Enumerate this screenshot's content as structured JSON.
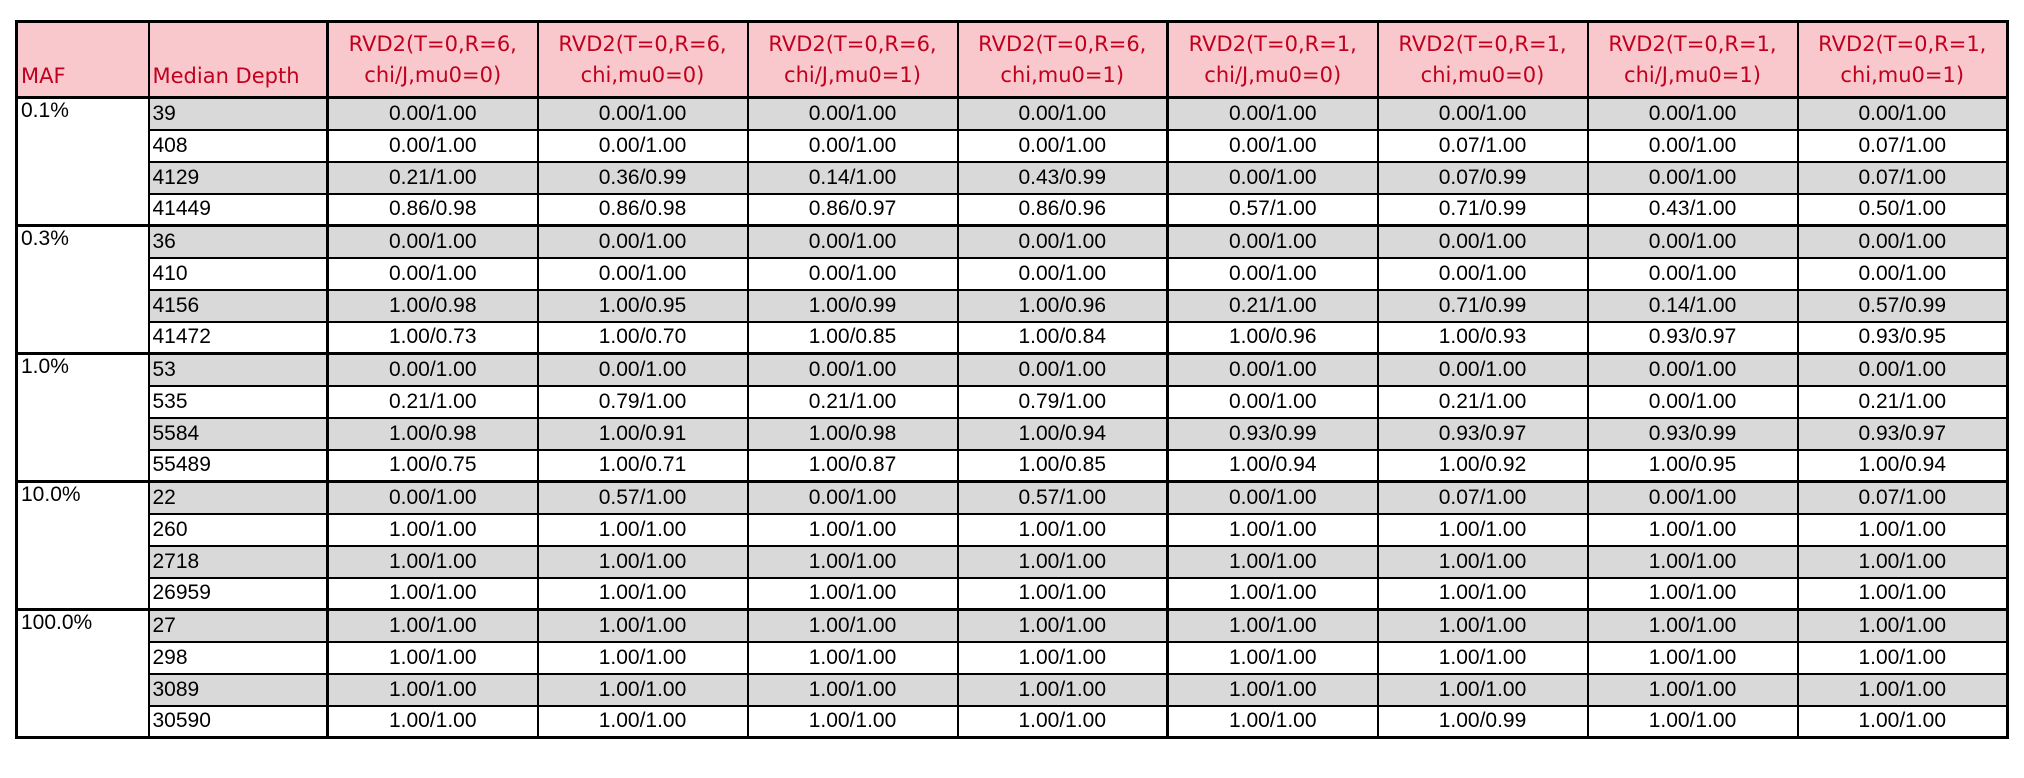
{
  "chart_data": {
    "type": "table",
    "columns": [
      "MAF",
      "Median Depth",
      "RVD2(T=0,R=6,\nchi/J,mu0=0)",
      "RVD2(T=0,R=6,\nchi,mu0=0)",
      "RVD2(T=0,R=6,\nchi/J,mu0=1)",
      "RVD2(T=0,R=6,\nchi,mu0=1)",
      "RVD2(T=0,R=1,\nchi/J,mu0=0)",
      "RVD2(T=0,R=1,\nchi,mu0=0)",
      "RVD2(T=0,R=1,\nchi/J,mu0=1)",
      "RVD2(T=0,R=1,\nchi,mu0=1)"
    ],
    "groups": [
      {
        "maf": "0.1%",
        "rows": [
          {
            "depth": "39",
            "values": [
              "0.00/1.00",
              "0.00/1.00",
              "0.00/1.00",
              "0.00/1.00",
              "0.00/1.00",
              "0.00/1.00",
              "0.00/1.00",
              "0.00/1.00"
            ]
          },
          {
            "depth": "408",
            "values": [
              "0.00/1.00",
              "0.00/1.00",
              "0.00/1.00",
              "0.00/1.00",
              "0.00/1.00",
              "0.07/1.00",
              "0.00/1.00",
              "0.07/1.00"
            ]
          },
          {
            "depth": "4129",
            "values": [
              "0.21/1.00",
              "0.36/0.99",
              "0.14/1.00",
              "0.43/0.99",
              "0.00/1.00",
              "0.07/0.99",
              "0.00/1.00",
              "0.07/1.00"
            ]
          },
          {
            "depth": "41449",
            "values": [
              "0.86/0.98",
              "0.86/0.98",
              "0.86/0.97",
              "0.86/0.96",
              "0.57/1.00",
              "0.71/0.99",
              "0.43/1.00",
              "0.50/1.00"
            ]
          }
        ]
      },
      {
        "maf": "0.3%",
        "rows": [
          {
            "depth": "36",
            "values": [
              "0.00/1.00",
              "0.00/1.00",
              "0.00/1.00",
              "0.00/1.00",
              "0.00/1.00",
              "0.00/1.00",
              "0.00/1.00",
              "0.00/1.00"
            ]
          },
          {
            "depth": "410",
            "values": [
              "0.00/1.00",
              "0.00/1.00",
              "0.00/1.00",
              "0.00/1.00",
              "0.00/1.00",
              "0.00/1.00",
              "0.00/1.00",
              "0.00/1.00"
            ]
          },
          {
            "depth": "4156",
            "values": [
              "1.00/0.98",
              "1.00/0.95",
              "1.00/0.99",
              "1.00/0.96",
              "0.21/1.00",
              "0.71/0.99",
              "0.14/1.00",
              "0.57/0.99"
            ]
          },
          {
            "depth": "41472",
            "values": [
              "1.00/0.73",
              "1.00/0.70",
              "1.00/0.85",
              "1.00/0.84",
              "1.00/0.96",
              "1.00/0.93",
              "0.93/0.97",
              "0.93/0.95"
            ]
          }
        ]
      },
      {
        "maf": "1.0%",
        "rows": [
          {
            "depth": "53",
            "values": [
              "0.00/1.00",
              "0.00/1.00",
              "0.00/1.00",
              "0.00/1.00",
              "0.00/1.00",
              "0.00/1.00",
              "0.00/1.00",
              "0.00/1.00"
            ]
          },
          {
            "depth": "535",
            "values": [
              "0.21/1.00",
              "0.79/1.00",
              "0.21/1.00",
              "0.79/1.00",
              "0.00/1.00",
              "0.21/1.00",
              "0.00/1.00",
              "0.21/1.00"
            ]
          },
          {
            "depth": "5584",
            "values": [
              "1.00/0.98",
              "1.00/0.91",
              "1.00/0.98",
              "1.00/0.94",
              "0.93/0.99",
              "0.93/0.97",
              "0.93/0.99",
              "0.93/0.97"
            ]
          },
          {
            "depth": "55489",
            "values": [
              "1.00/0.75",
              "1.00/0.71",
              "1.00/0.87",
              "1.00/0.85",
              "1.00/0.94",
              "1.00/0.92",
              "1.00/0.95",
              "1.00/0.94"
            ]
          }
        ]
      },
      {
        "maf": "10.0%",
        "rows": [
          {
            "depth": "22",
            "values": [
              "0.00/1.00",
              "0.57/1.00",
              "0.00/1.00",
              "0.57/1.00",
              "0.00/1.00",
              "0.07/1.00",
              "0.00/1.00",
              "0.07/1.00"
            ]
          },
          {
            "depth": "260",
            "values": [
              "1.00/1.00",
              "1.00/1.00",
              "1.00/1.00",
              "1.00/1.00",
              "1.00/1.00",
              "1.00/1.00",
              "1.00/1.00",
              "1.00/1.00"
            ]
          },
          {
            "depth": "2718",
            "values": [
              "1.00/1.00",
              "1.00/1.00",
              "1.00/1.00",
              "1.00/1.00",
              "1.00/1.00",
              "1.00/1.00",
              "1.00/1.00",
              "1.00/1.00"
            ]
          },
          {
            "depth": "26959",
            "values": [
              "1.00/1.00",
              "1.00/1.00",
              "1.00/1.00",
              "1.00/1.00",
              "1.00/1.00",
              "1.00/1.00",
              "1.00/1.00",
              "1.00/1.00"
            ]
          }
        ]
      },
      {
        "maf": "100.0%",
        "rows": [
          {
            "depth": "27",
            "values": [
              "1.00/1.00",
              "1.00/1.00",
              "1.00/1.00",
              "1.00/1.00",
              "1.00/1.00",
              "1.00/1.00",
              "1.00/1.00",
              "1.00/1.00"
            ]
          },
          {
            "depth": "298",
            "values": [
              "1.00/1.00",
              "1.00/1.00",
              "1.00/1.00",
              "1.00/1.00",
              "1.00/1.00",
              "1.00/1.00",
              "1.00/1.00",
              "1.00/1.00"
            ]
          },
          {
            "depth": "3089",
            "values": [
              "1.00/1.00",
              "1.00/1.00",
              "1.00/1.00",
              "1.00/1.00",
              "1.00/1.00",
              "1.00/1.00",
              "1.00/1.00",
              "1.00/1.00"
            ]
          },
          {
            "depth": "30590",
            "values": [
              "1.00/1.00",
              "1.00/1.00",
              "1.00/1.00",
              "1.00/1.00",
              "1.00/1.00",
              "1.00/0.99",
              "1.00/1.00",
              "1.00/1.00"
            ]
          }
        ]
      }
    ]
  },
  "colors": {
    "header_bg": "#f8c8cc",
    "header_text": "#c0001e",
    "shaded_row": "#d9d9d9",
    "border": "#000000"
  }
}
